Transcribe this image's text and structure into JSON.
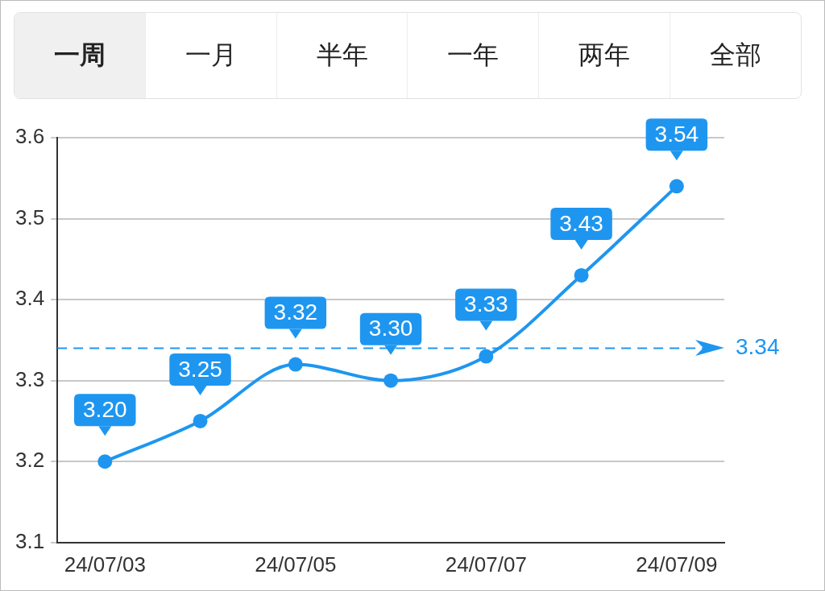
{
  "chart_data": {
    "type": "line",
    "annotations": [
      "一周",
      "一月",
      "半年",
      "一年",
      "两年",
      "全部"
    ],
    "categories": [
      "24/07/03",
      null,
      "24/07/05",
      null,
      "24/07/07",
      null,
      "24/07/09"
    ],
    "series": [
      {
        "color": "#1e96f0",
        "values": [
          3.2,
          3.25,
          3.32,
          3.3,
          3.33,
          3.43,
          3.54
        ],
        "value_labels": [
          "3.20",
          "3.25",
          "3.32",
          "3.30",
          "3.33",
          "3.43",
          "3.54"
        ]
      }
    ],
    "ylim": [
      3.1,
      3.6
    ],
    "yticks": [
      3.1,
      3.2,
      3.3,
      3.4,
      3.5,
      3.6
    ],
    "ref_lines": [
      {
        "axis": "y",
        "value": 3.34,
        "label": "3.34",
        "color": "#1e96f0",
        "line_style": "dashed"
      }
    ],
    "grid": "y",
    "legend": false,
    "marker": "circle",
    "line_style": "solid"
  }
}
